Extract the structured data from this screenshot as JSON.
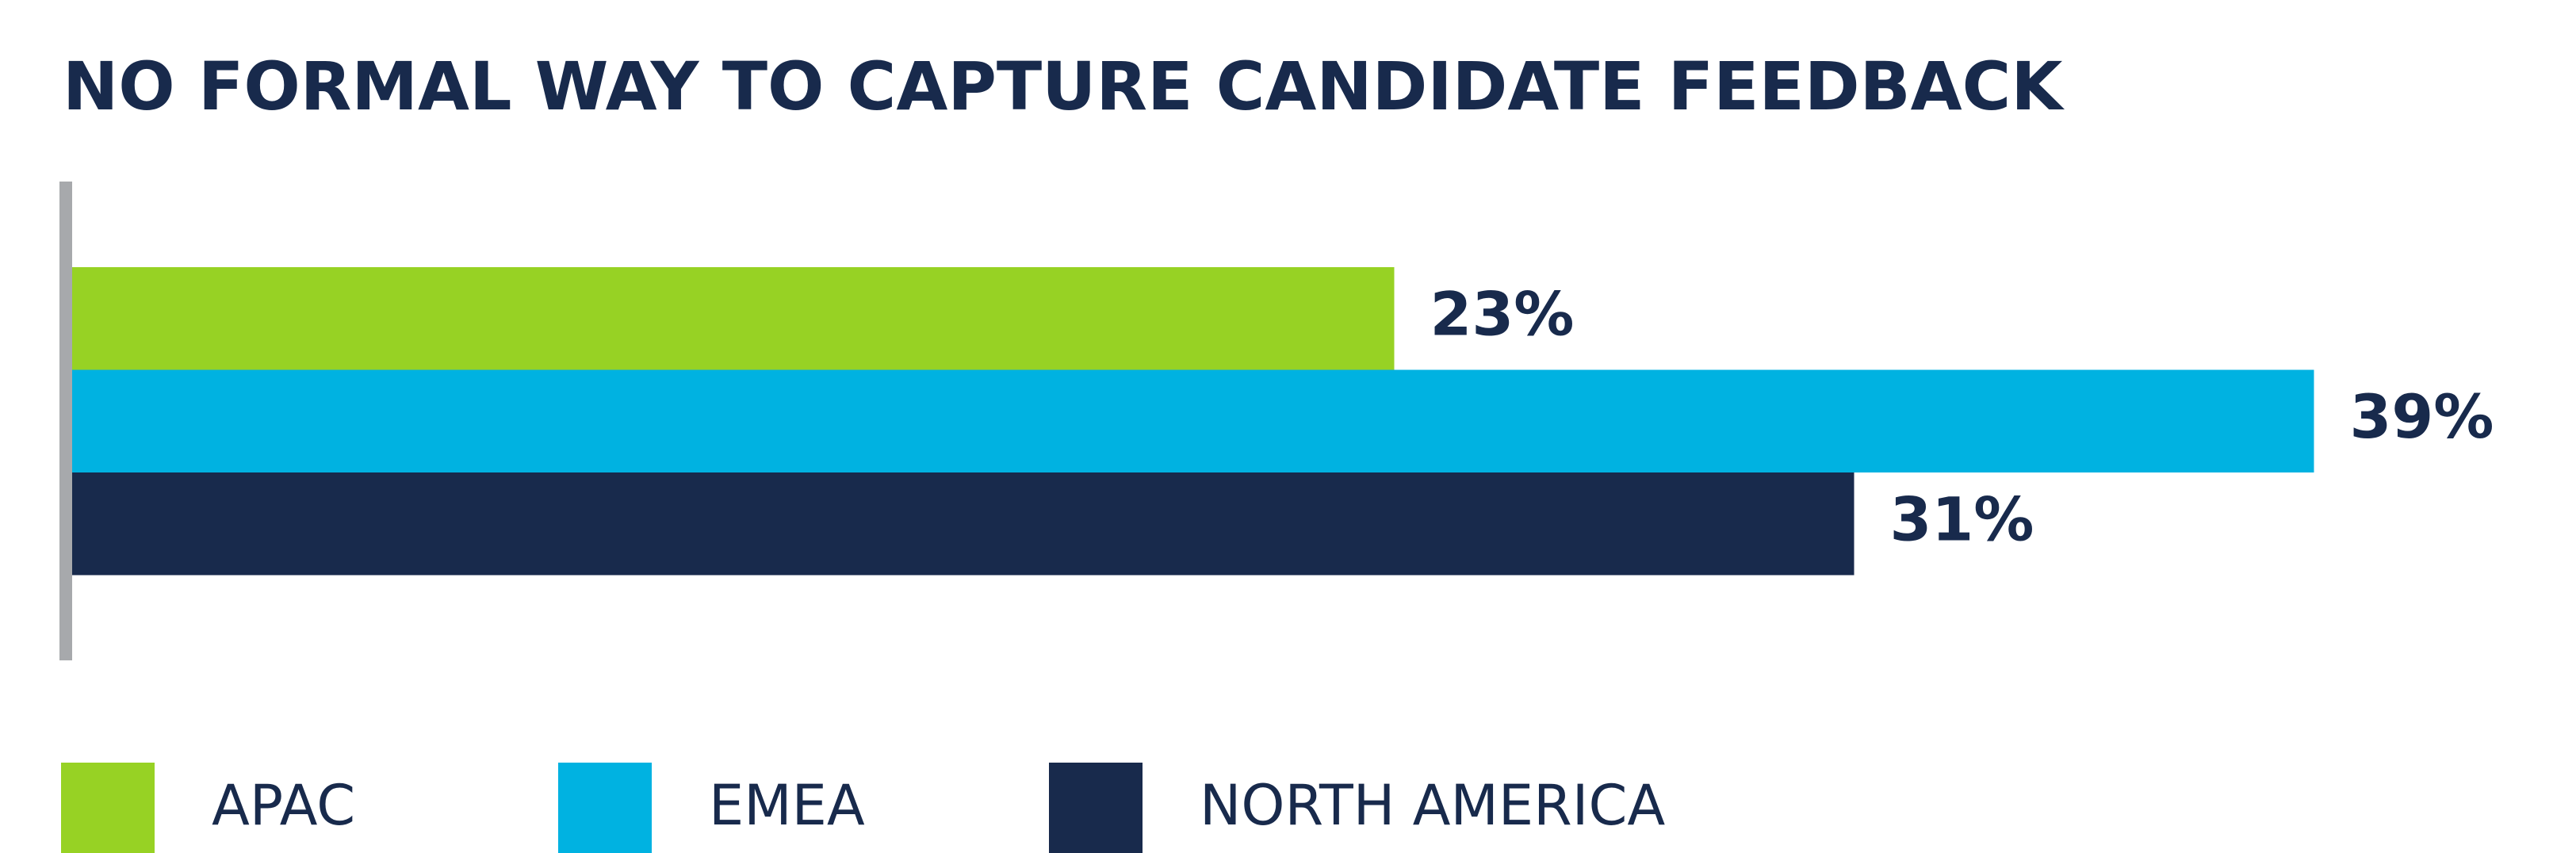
{
  "chart_data": {
    "type": "bar",
    "orientation": "horizontal",
    "title": "NO FORMAL WAY TO CAPTURE CANDIDATE FEEDBACK",
    "categories": [
      null
    ],
    "series": [
      {
        "name": "APAC",
        "color": "#97d224",
        "values": [
          23
        ],
        "value_labels": [
          "23%"
        ]
      },
      {
        "name": "EMEA",
        "color": "#00b2e1",
        "values": [
          39
        ],
        "value_labels": [
          "39%"
        ]
      },
      {
        "name": "NORTH AMERICA",
        "color": "#182a4c",
        "values": [
          31
        ],
        "value_labels": [
          "31%"
        ]
      }
    ],
    "legend": "bottom"
  }
}
